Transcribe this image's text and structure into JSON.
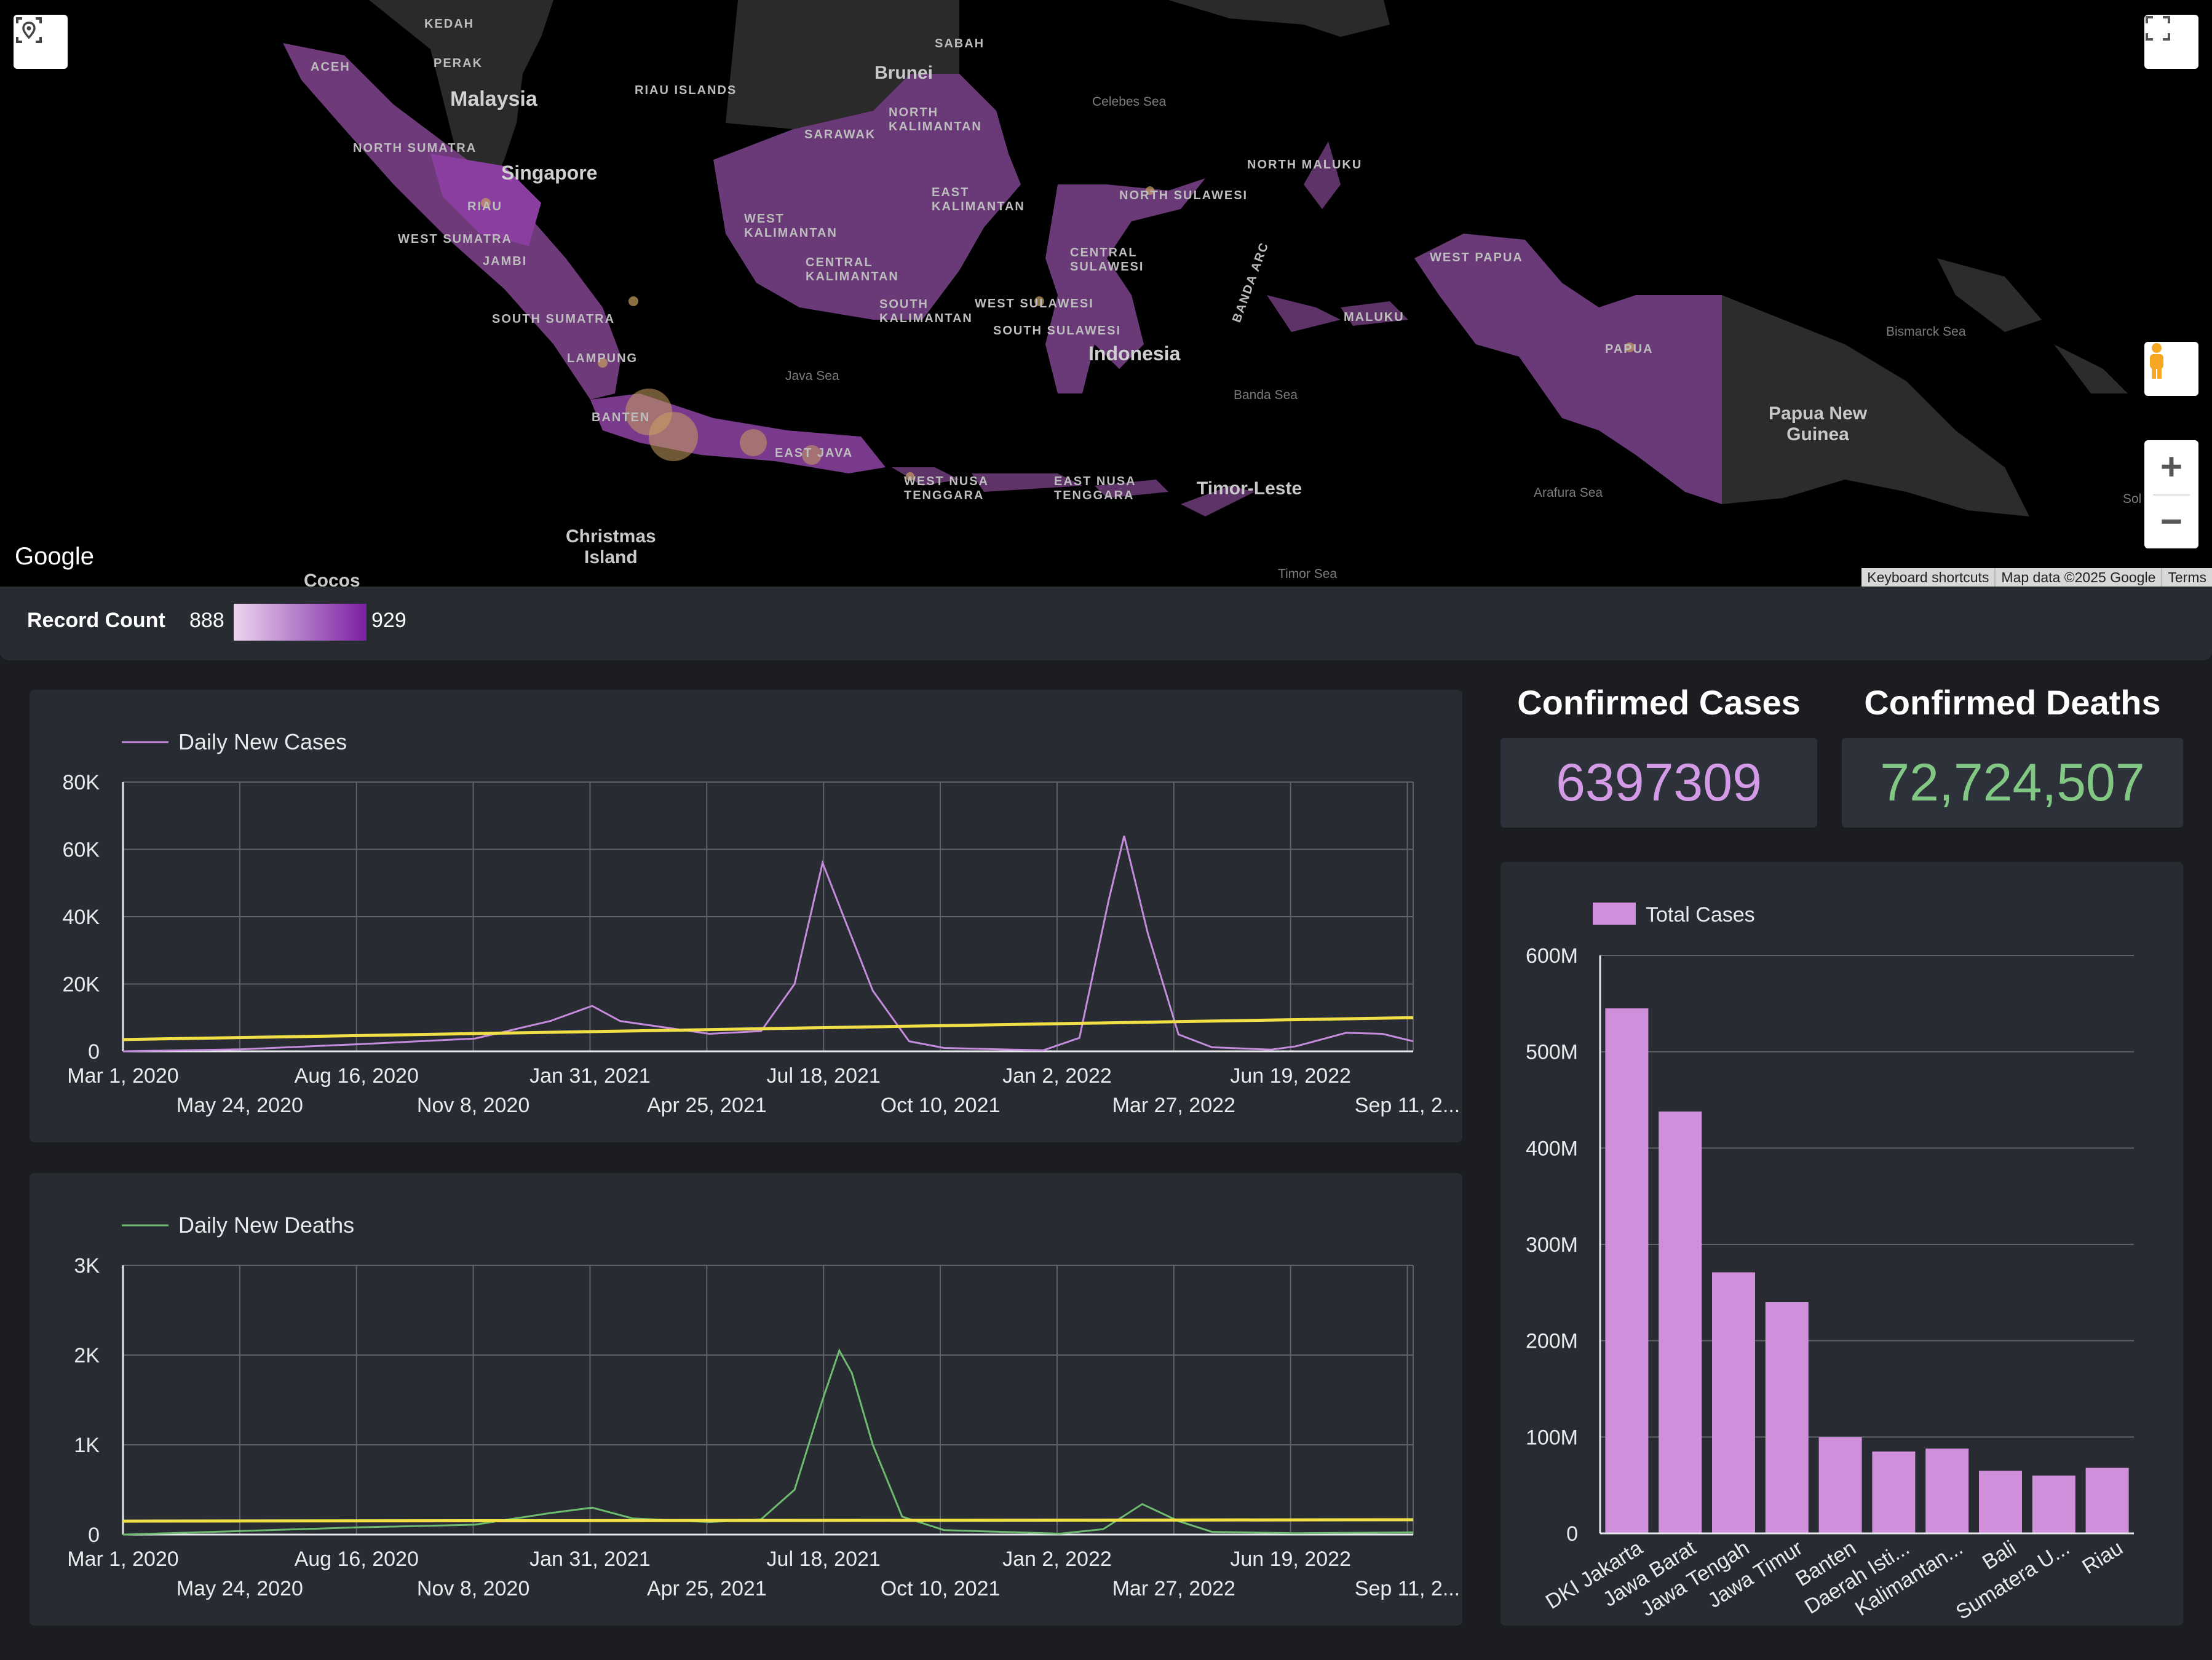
{
  "map": {
    "labels": {
      "kedah": "KEDAH",
      "perak": "PERAK",
      "aceh": "ACEH",
      "malaysia": "Malaysia",
      "riau_islands": "RIAU ISLANDS",
      "brunei": "Brunei",
      "sabah": "SABAH",
      "sarawak": "SARAWAK",
      "north_kalimantan": "NORTH\nKALIMANTAN",
      "celebes_sea": "Celebes Sea",
      "north_sumatra": "NORTH SUMATRA",
      "singapore": "Singapore",
      "riau": "RIAU",
      "west_sumatra": "WEST SUMATRA",
      "jambi": "JAMBI",
      "west_kalimantan": "WEST\nKALIMANTAN",
      "east_kalimantan": "EAST\nKALIMANTAN",
      "central_kalimantan": "CENTRAL\nKALIMANTAN",
      "south_kalimantan": "SOUTH\nKALIMANTAN",
      "north_sulawesi": "NORTH SULAWESI",
      "north_maluku": "NORTH MALUKU",
      "central_sulawesi": "CENTRAL\nSULAWESI",
      "west_sulawesi": "WEST SULAWESI",
      "south_sulawesi": "SOUTH SULAWESI",
      "south_sumatra": "SOUTH SUMATRA",
      "lampung": "LAMPUNG",
      "java_sea": "Java Sea",
      "indonesia": "Indonesia",
      "banda_arc": "BANDA ARC",
      "maluku": "MALUKU",
      "banda_sea": "Banda Sea",
      "west_papua": "WEST PAPUA",
      "papua": "PAPUA",
      "bismarck_sea": "Bismarck Sea",
      "png": "Papua New\nGuinea",
      "banten": "BANTEN",
      "east_java": "EAST JAVA",
      "west_nusa": "WEST NUSA\nTENGGARA",
      "east_nusa": "EAST NUSA\nTENGGARA",
      "timor_leste": "Timor-Leste",
      "arafura_sea": "Arafura Sea",
      "christmas": "Christmas\nIsland",
      "cocos": "Cocos",
      "timor_sea": "Timor Sea",
      "solomon": "Sol"
    },
    "google": "Google",
    "attribution": [
      "Keyboard shortcuts",
      "Map data ©2025 Google",
      "Terms"
    ]
  },
  "legend": {
    "title": "Record Count",
    "min": "888",
    "max": "929",
    "color_low": "#e6c9ec",
    "color_high": "#7a1fa2"
  },
  "scorecards": {
    "cases": {
      "title": "Confirmed Cases",
      "value": "6397309",
      "color": "#d39be6"
    },
    "deaths": {
      "title": "Confirmed Deaths",
      "value": "72,724,507",
      "color": "#83c785"
    }
  },
  "chart_data": [
    {
      "type": "line",
      "series": [
        {
          "name": "Daily New Cases",
          "color": "#c58bdc"
        }
      ],
      "trendline_color": "#f0df46",
      "y_ticks": [
        "80K",
        "60K",
        "40K",
        "20K",
        "0"
      ],
      "ylim": [
        0,
        80000
      ],
      "x_ticks_top": [
        "Mar 1, 2020",
        "Aug 16, 2020",
        "Jan 31, 2021",
        "Jul 18, 2021",
        "Jan 2, 2022",
        "Jun 19, 2022"
      ],
      "x_ticks_bottom": [
        "May 24, 2020",
        "Nov 8, 2020",
        "Apr 25, 2021",
        "Oct 10, 2021",
        "Mar 27, 2022",
        "Sep 11, 2..."
      ],
      "x_range": [
        "2020-03-01",
        "2022-09-11"
      ],
      "points": [
        [
          "2020-03-01",
          0
        ],
        [
          "2020-05-24",
          600
        ],
        [
          "2020-08-16",
          2100
        ],
        [
          "2020-11-08",
          3800
        ],
        [
          "2021-01-01",
          9000
        ],
        [
          "2021-01-31",
          13500
        ],
        [
          "2021-02-20",
          9000
        ],
        [
          "2021-04-25",
          5200
        ],
        [
          "2021-06-01",
          6000
        ],
        [
          "2021-06-25",
          20000
        ],
        [
          "2021-07-15",
          56000
        ],
        [
          "2021-08-01",
          38000
        ],
        [
          "2021-08-20",
          18000
        ],
        [
          "2021-09-15",
          3000
        ],
        [
          "2021-10-10",
          1000
        ],
        [
          "2021-12-20",
          300
        ],
        [
          "2022-01-15",
          4000
        ],
        [
          "2022-02-05",
          45000
        ],
        [
          "2022-02-16",
          64000
        ],
        [
          "2022-03-05",
          35000
        ],
        [
          "2022-03-27",
          5000
        ],
        [
          "2022-04-20",
          1200
        ],
        [
          "2022-06-01",
          500
        ],
        [
          "2022-06-19",
          1500
        ],
        [
          "2022-07-25",
          5500
        ],
        [
          "2022-08-20",
          5200
        ],
        [
          "2022-09-11",
          3000
        ]
      ],
      "trend": [
        [
          "2020-03-01",
          3500
        ],
        [
          "2022-09-11",
          10000
        ]
      ]
    },
    {
      "type": "line",
      "series": [
        {
          "name": "Daily New Deaths",
          "color": "#6dbb6f"
        }
      ],
      "trendline_color": "#f0df46",
      "y_ticks": [
        "3K",
        "2K",
        "1K",
        "0"
      ],
      "ylim": [
        0,
        3000
      ],
      "x_ticks_top": [
        "Mar 1, 2020",
        "Aug 16, 2020",
        "Jan 31, 2021",
        "Jul 18, 2021",
        "Jan 2, 2022",
        "Jun 19, 2022"
      ],
      "x_ticks_bottom": [
        "May 24, 2020",
        "Nov 8, 2020",
        "Apr 25, 2021",
        "Oct 10, 2021",
        "Mar 27, 2022",
        "Sep 11, 2..."
      ],
      "x_range": [
        "2020-03-01",
        "2022-09-11"
      ],
      "points": [
        [
          "2020-03-01",
          0
        ],
        [
          "2020-05-24",
          40
        ],
        [
          "2020-08-16",
          80
        ],
        [
          "2020-11-08",
          110
        ],
        [
          "2021-01-01",
          240
        ],
        [
          "2021-01-31",
          300
        ],
        [
          "2021-03-01",
          180
        ],
        [
          "2021-04-25",
          140
        ],
        [
          "2021-06-01",
          170
        ],
        [
          "2021-06-25",
          500
        ],
        [
          "2021-07-15",
          1500
        ],
        [
          "2021-07-27",
          2050
        ],
        [
          "2021-08-05",
          1800
        ],
        [
          "2021-08-20",
          1000
        ],
        [
          "2021-09-10",
          200
        ],
        [
          "2021-10-10",
          50
        ],
        [
          "2022-01-01",
          10
        ],
        [
          "2022-02-01",
          60
        ],
        [
          "2022-03-01",
          340
        ],
        [
          "2022-03-27",
          150
        ],
        [
          "2022-04-20",
          30
        ],
        [
          "2022-06-19",
          15
        ],
        [
          "2022-09-11",
          25
        ]
      ],
      "trend": [
        [
          "2020-03-01",
          150
        ],
        [
          "2022-09-11",
          165
        ]
      ]
    },
    {
      "type": "bar",
      "series": [
        {
          "name": "Total Cases",
          "color": "#cf8fdb"
        }
      ],
      "categories": [
        "DKI Jakarta",
        "Jawa Barat",
        "Jawa Tengah",
        "Jawa Timur",
        "Banten",
        "Daerah Isti...",
        "Kalimantan...",
        "Bali",
        "Sumatera U...",
        "Riau"
      ],
      "values": [
        545,
        438,
        271,
        240,
        100,
        85,
        88,
        65,
        60,
        68
      ],
      "y_ticks": [
        "600M",
        "500M",
        "400M",
        "300M",
        "200M",
        "100M",
        "0"
      ],
      "ylim": [
        0,
        600
      ]
    }
  ]
}
